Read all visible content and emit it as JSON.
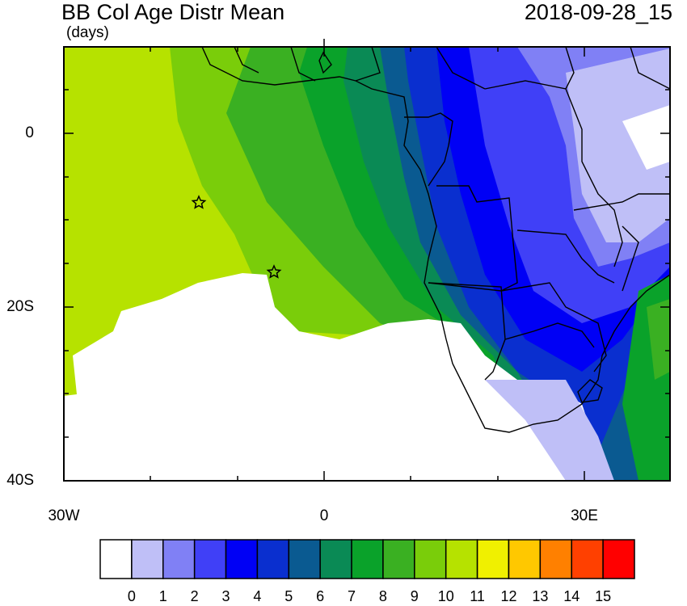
{
  "title": "BB Col Age Distr Mean",
  "timestamp": "2018-09-28_15",
  "units": "(days)",
  "lat_labels": [
    "0",
    "20S",
    "40S"
  ],
  "lon_labels": [
    "30W",
    "0",
    "30E"
  ],
  "colorbar": {
    "labels": [
      "0",
      "1",
      "2",
      "3",
      "4",
      "5",
      "6",
      "7",
      "8",
      "9",
      "10",
      "11",
      "12",
      "13",
      "14",
      "15"
    ],
    "colors": [
      "#ffffff",
      "#bfbff7",
      "#8080f5",
      "#4040f7",
      "#0000f5",
      "#0a2fcf",
      "#0a5a91",
      "#0a8a55",
      "#0aa22a",
      "#3ab022",
      "#7acd0a",
      "#b6e200",
      "#f0f000",
      "#ffc800",
      "#ff8000",
      "#ff4000",
      "#ff0000"
    ]
  },
  "markers": [
    "star",
    "star"
  ]
}
